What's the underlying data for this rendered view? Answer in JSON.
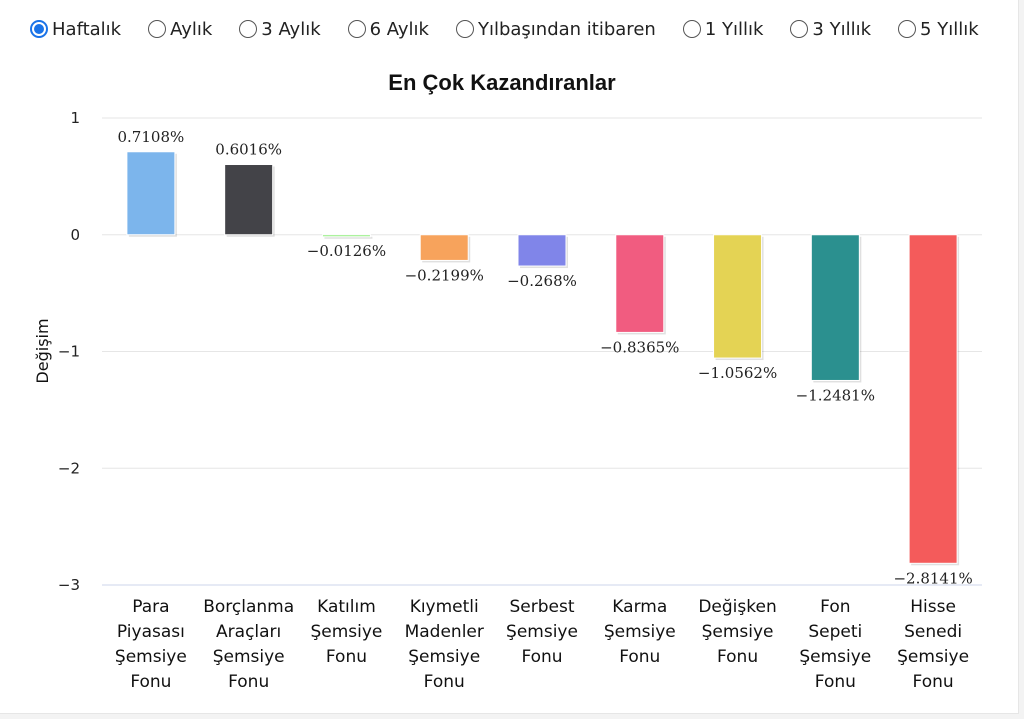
{
  "period_options": [
    {
      "label": "Haftalık",
      "selected": true
    },
    {
      "label": "Aylık",
      "selected": false
    },
    {
      "label": "3 Aylık",
      "selected": false
    },
    {
      "label": "6 Aylık",
      "selected": false
    },
    {
      "label": "Yılbaşından itibaren",
      "selected": false
    },
    {
      "label": "1 Yıllık",
      "selected": false
    },
    {
      "label": "3 Yıllık",
      "selected": false
    },
    {
      "label": "5 Yıllık",
      "selected": false
    }
  ],
  "chart_data": {
    "type": "bar",
    "title": "En Çok Kazandıranlar",
    "ylabel": "Değişim",
    "xlabel": "",
    "ylim": [
      -3,
      1
    ],
    "yticks": [
      1,
      0,
      -1,
      -2,
      -3
    ],
    "ytick_labels": [
      "1",
      "0",
      "−1",
      "−2",
      "−3"
    ],
    "grid": true,
    "legend": "none",
    "categories": [
      [
        "Para",
        "Piyasası",
        "Şemsiye",
        "Fonu"
      ],
      [
        "Borçlanma",
        "Araçları",
        "Şemsiye",
        "Fonu"
      ],
      [
        "Katılım",
        "Şemsiye",
        "Fonu"
      ],
      [
        "Kıymetli",
        "Madenler",
        "Şemsiye",
        "Fonu"
      ],
      [
        "Serbest",
        "Şemsiye",
        "Fonu"
      ],
      [
        "Karma",
        "Şemsiye",
        "Fonu"
      ],
      [
        "Değişken",
        "Şemsiye",
        "Fonu"
      ],
      [
        "Fon",
        "Sepeti",
        "Şemsiye",
        "Fonu"
      ],
      [
        "Hisse",
        "Senedi",
        "Şemsiye",
        "Fonu"
      ]
    ],
    "values": [
      0.7108,
      0.6016,
      -0.0126,
      -0.2199,
      -0.268,
      -0.8365,
      -1.0562,
      -1.2481,
      -2.8141
    ],
    "value_labels": [
      "0.7108%",
      "0.6016%",
      "−0.0126%",
      "−0.2199%",
      "−0.268%",
      "−0.8365%",
      "−1.0562%",
      "−1.2481%",
      "−2.8141%"
    ],
    "colors": [
      "#7cb5ec",
      "#434348",
      "#90ed7d",
      "#f7a35c",
      "#8085e9",
      "#f15c80",
      "#e4d354",
      "#2b908f",
      "#f45b5b"
    ]
  }
}
